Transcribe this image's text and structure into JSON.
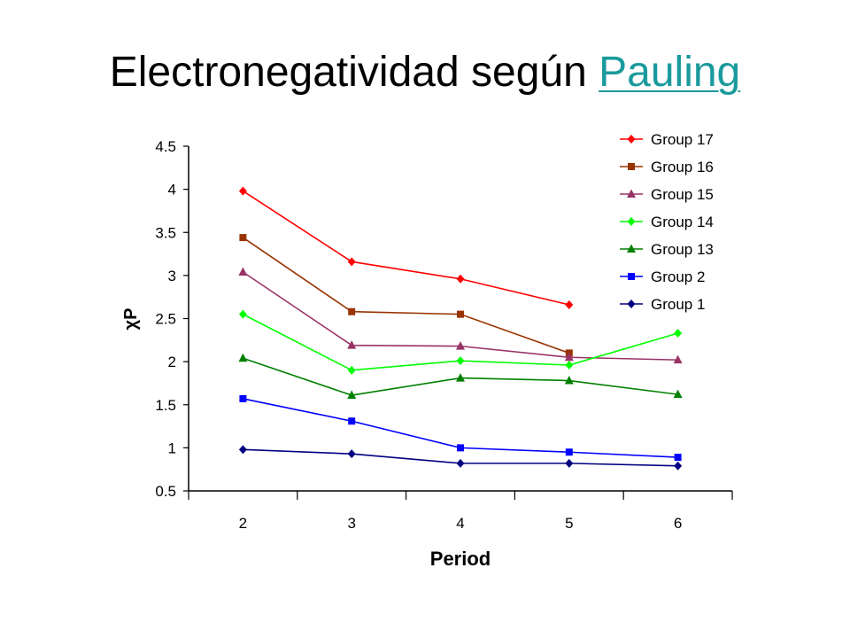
{
  "title": {
    "prefix": "Electronegatividad según",
    "link_text": "Pauling"
  },
  "chart_data": {
    "type": "line",
    "xlabel": "Period",
    "ylabel": "χP",
    "ylim": [
      0.5,
      4.5
    ],
    "yticks": [
      "0.5",
      "1",
      "1.5",
      "2",
      "2.5",
      "3",
      "3.5",
      "4",
      "4.5"
    ],
    "categories": [
      "2",
      "3",
      "4",
      "5",
      "6"
    ],
    "grid": false,
    "legend_position": "top-right",
    "series": [
      {
        "name": "Group 17",
        "color": "#ff0000",
        "marker": "diamond",
        "values": [
          3.98,
          3.16,
          2.96,
          2.66,
          null
        ]
      },
      {
        "name": "Group 16",
        "color": "#993300",
        "marker": "square",
        "values": [
          3.44,
          2.58,
          2.55,
          2.1,
          null
        ]
      },
      {
        "name": "Group 15",
        "color": "#993366",
        "marker": "triangle",
        "values": [
          3.04,
          2.19,
          2.18,
          2.05,
          2.02
        ]
      },
      {
        "name": "Group 14",
        "color": "#00ff00",
        "marker": "diamond",
        "values": [
          2.55,
          1.9,
          2.01,
          1.96,
          2.33
        ]
      },
      {
        "name": "Group 13",
        "color": "#008000",
        "marker": "triangle",
        "values": [
          2.04,
          1.61,
          1.81,
          1.78,
          1.62
        ]
      },
      {
        "name": "Group 2",
        "color": "#0000ff",
        "marker": "square",
        "values": [
          1.57,
          1.31,
          1.0,
          0.95,
          0.89
        ]
      },
      {
        "name": "Group 1",
        "color": "#000080",
        "marker": "diamond",
        "values": [
          0.98,
          0.93,
          0.82,
          0.82,
          0.79
        ]
      }
    ]
  }
}
